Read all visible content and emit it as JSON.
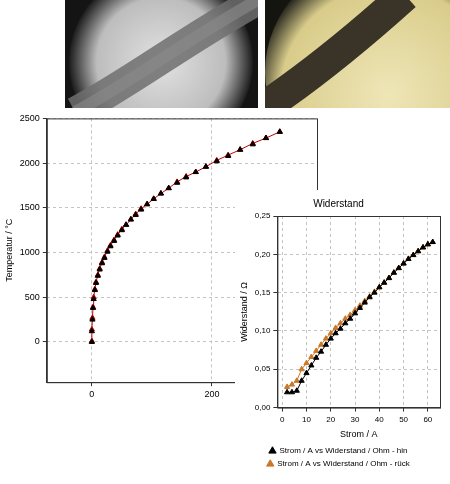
{
  "chart_data": [
    {
      "type": "line",
      "y_label": "Temperatur / °C",
      "x": [
        0,
        0,
        1,
        2,
        3,
        5,
        7,
        10,
        13,
        17,
        21,
        26,
        31,
        37,
        43,
        50,
        57,
        65,
        73,
        82,
        92,
        103,
        115,
        128,
        142,
        157,
        173,
        190,
        208,
        227,
        247,
        268,
        290,
        313
      ],
      "series": [
        {
          "color": "#000000",
          "marker": "triangle",
          "line_style": "none",
          "values": [
            0,
            120,
            250,
            380,
            480,
            580,
            660,
            740,
            810,
            880,
            940,
            1010,
            1070,
            1130,
            1190,
            1250,
            1310,
            1370,
            1420,
            1480,
            1540,
            1600,
            1660,
            1720,
            1780,
            1840,
            1900,
            1960,
            2020,
            2080,
            2150,
            2210,
            2280,
            2350
          ]
        },
        {
          "color": "#c00000",
          "marker": "triangle",
          "line_style": "solid",
          "values": [
            10,
            140,
            270,
            390,
            500,
            590,
            670,
            750,
            820,
            890,
            950,
            1020,
            1080,
            1140,
            1200,
            1260,
            1310,
            1370,
            1430,
            1490,
            1540,
            1600,
            1660,
            1720,
            1790,
            1850,
            1900,
            1960,
            2030,
            2090,
            2150,
            2220,
            2280,
            2350
          ]
        }
      ],
      "xlim": [
        -75,
        375
      ],
      "xticks": [
        0,
        200
      ],
      "ylim": [
        -450,
        2500
      ],
      "yticks": [
        0,
        500,
        1000,
        1500,
        2000,
        2500
      ],
      "grid": true
    },
    {
      "type": "line",
      "title": "Widerstand",
      "x_label": "Strom / A",
      "y_label": "Widerstand / Ω",
      "x": [
        2,
        4,
        6,
        8,
        10,
        12,
        14,
        16,
        18,
        20,
        22,
        24,
        26,
        28,
        30,
        32,
        34,
        36,
        38,
        40,
        42,
        44,
        46,
        48,
        50,
        52,
        54,
        56,
        58,
        60,
        62
      ],
      "series": [
        {
          "name": "Strom / A vs Widerstand / Ohm - hin",
          "color": "#000000",
          "marker": "triangle",
          "line_style": "solid",
          "values": [
            0.02,
            0.02,
            0.022,
            0.035,
            0.045,
            0.055,
            0.065,
            0.073,
            0.082,
            0.09,
            0.097,
            0.103,
            0.11,
            0.116,
            0.123,
            0.13,
            0.137,
            0.144,
            0.15,
            0.157,
            0.163,
            0.169,
            0.176,
            0.182,
            0.188,
            0.194,
            0.199,
            0.204,
            0.209,
            0.213,
            0.216
          ]
        },
        {
          "name": "Strom / A vs Widerstand / Ohm - rück",
          "color": "#c8782a",
          "marker": "triangle",
          "line_style": "solid",
          "values": [
            0.027,
            0.03,
            0.035,
            0.05,
            0.058,
            0.066,
            0.074,
            0.082,
            0.09,
            0.097,
            0.104,
            0.11,
            0.116,
            0.121,
            0.127,
            0.133,
            0.139,
            0.145,
            0.151,
            0.157,
            0.163,
            0.169,
            0.176,
            0.182,
            0.188,
            0.194,
            0.199,
            0.204,
            0.209,
            0.213,
            0.216
          ]
        }
      ],
      "xlim": [
        -2,
        65
      ],
      "xticks": [
        0,
        10,
        20,
        30,
        40,
        50,
        60
      ],
      "ylim": [
        0,
        0.25
      ],
      "yticks": [
        {
          "value": 0,
          "label": "0,00"
        },
        {
          "value": 0.05,
          "label": "0,05"
        },
        {
          "value": 0.1,
          "label": "0,10"
        },
        {
          "value": 0.15,
          "label": "0,15"
        },
        {
          "value": 0.2,
          "label": "0,20"
        },
        {
          "value": 0.25,
          "label": "0,25"
        }
      ],
      "grid": true,
      "legend": "bottom"
    }
  ]
}
